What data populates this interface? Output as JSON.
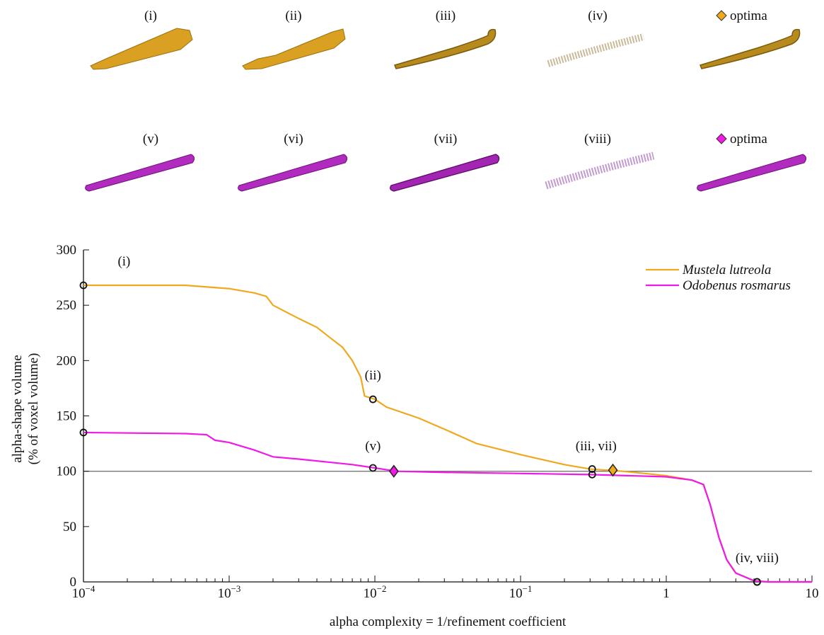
{
  "chart_data": {
    "type": "line",
    "panel_labels": [
      [
        "(i)",
        "(ii)",
        "(iii)",
        "(iv)",
        "optima"
      ],
      [
        "(v)",
        "(vi)",
        "(vii)",
        "(viii)",
        "optima"
      ]
    ],
    "xlabel": "alpha complexity = 1/refinement coefficient",
    "ylabel": [
      "alpha-shape volume",
      "(% of voxel volume)"
    ],
    "xscale": "log",
    "xlim": [
      0.0001,
      10
    ],
    "xticks": [
      {
        "value": 0.0001,
        "label": "10",
        "superscript": "−4"
      },
      {
        "value": 0.001,
        "label": "10",
        "superscript": "−3"
      },
      {
        "value": 0.01,
        "label": "10",
        "superscript": "−2"
      },
      {
        "value": 0.1,
        "label": "10",
        "superscript": "−1"
      },
      1,
      10
    ],
    "xminorticks": [
      0.0002,
      0.0003,
      0.0004,
      0.0005,
      0.0006,
      0.0007,
      0.0008,
      0.0009,
      0.002,
      0.003,
      0.004,
      0.005,
      0.006,
      0.007,
      0.008,
      0.009,
      0.02,
      0.03,
      0.04,
      0.05,
      0.06,
      0.07,
      0.08,
      0.09,
      0.2,
      0.3,
      0.4,
      0.5,
      0.6,
      0.7,
      0.8,
      0.9,
      2,
      3,
      4,
      5,
      6,
      7,
      8,
      9
    ],
    "ylim": [
      0,
      300
    ],
    "yticks": [
      0,
      50,
      100,
      150,
      200,
      250,
      300
    ],
    "hline": 100,
    "legend": "upper right",
    "series": [
      {
        "name": "Mustela lutreola",
        "color": "#f0a81e",
        "x": [
          0.0001,
          0.0005,
          0.001,
          0.0015,
          0.0018,
          0.002,
          0.003,
          0.004,
          0.005,
          0.006,
          0.007,
          0.008,
          0.0085,
          0.01,
          0.012,
          0.02,
          0.03,
          0.05,
          0.1,
          0.2,
          0.3,
          0.5,
          1,
          1.5,
          1.8,
          2,
          2.3,
          2.6,
          3,
          4,
          5,
          10
        ],
        "values": [
          268,
          268,
          265,
          261,
          258,
          250,
          238,
          230,
          220,
          212,
          200,
          185,
          168,
          165,
          158,
          148,
          138,
          125,
          115,
          106,
          102,
          100,
          96,
          92,
          88,
          70,
          40,
          20,
          8,
          1,
          0,
          0
        ],
        "circles": {
          "x": [
            0.0001,
            0.0097,
            0.31,
            4.2
          ],
          "y": [
            268,
            165,
            102,
            0
          ]
        },
        "optimum": {
          "x": 0.43,
          "y": 101
        }
      },
      {
        "name": "Odobenus rosmarus",
        "color": "#f019e6",
        "x": [
          0.0001,
          0.0005,
          0.0007,
          0.0008,
          0.001,
          0.0015,
          0.002,
          0.003,
          0.005,
          0.007,
          0.01,
          0.014,
          0.03,
          0.1,
          0.3,
          1,
          1.5,
          1.8,
          2,
          2.3,
          2.6,
          3,
          4,
          5,
          10
        ],
        "values": [
          135,
          134,
          133,
          128,
          126,
          119,
          113,
          111,
          108,
          106,
          103,
          100,
          99,
          98,
          97,
          95,
          92,
          88,
          70,
          40,
          20,
          8,
          1,
          0,
          0
        ],
        "circles": {
          "x": [
            0.0001,
            0.0097,
            0.31,
            4.2
          ],
          "y": [
            135,
            103,
            97,
            0
          ]
        },
        "optimum": {
          "x": 0.0135,
          "y": 100
        }
      }
    ],
    "annotations": [
      {
        "text": "(i)",
        "x": 0.00019,
        "y": 286
      },
      {
        "text": "(ii)",
        "x": 0.0097,
        "y": 183
      },
      {
        "text": "(v)",
        "x": 0.0097,
        "y": 119
      },
      {
        "text": "(iii, vii)",
        "x": 0.33,
        "y": 119
      },
      {
        "text": "(iv, viii)",
        "x": 4.2,
        "y": 18
      }
    ]
  }
}
